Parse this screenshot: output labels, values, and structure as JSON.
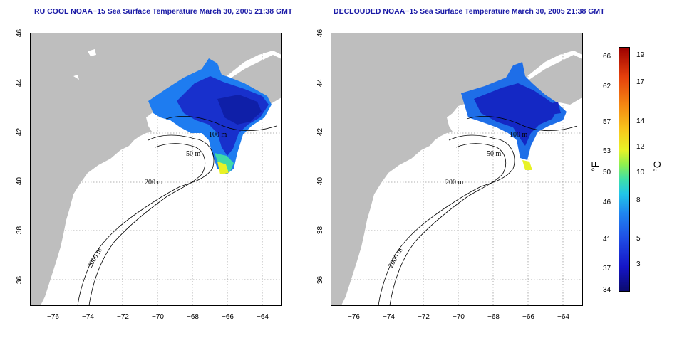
{
  "left_panel": {
    "title": "RU COOL NOAA−15 Sea Surface Temperature March 30, 2005 21:38 GMT"
  },
  "right_panel": {
    "title": "DECLOUDED NOAA−15 Sea Surface Temperature March 30, 2005 21:38 GMT"
  },
  "x_ticks": [
    "−76",
    "−74",
    "−72",
    "−70",
    "−68",
    "−66",
    "−64"
  ],
  "y_ticks": [
    "36",
    "38",
    "40",
    "42",
    "44",
    "46"
  ],
  "contour_labels": [
    "50 m",
    "100 m",
    "200 m",
    "2000 m"
  ],
  "colorbar": {
    "fahrenheit": [
      "66",
      "62",
      "57",
      "53",
      "50",
      "46",
      "41",
      "37",
      "34"
    ],
    "celsius": [
      "19",
      "17",
      "14",
      "12",
      "10",
      "8",
      "5",
      "3"
    ],
    "unit_f": "°F",
    "unit_c": "°C"
  },
  "colors": {
    "land": "#bebebe",
    "cold": "#1428c8",
    "mid": "#1e78f0",
    "warm": "#e8f226",
    "title": "#1a1aa6"
  }
}
